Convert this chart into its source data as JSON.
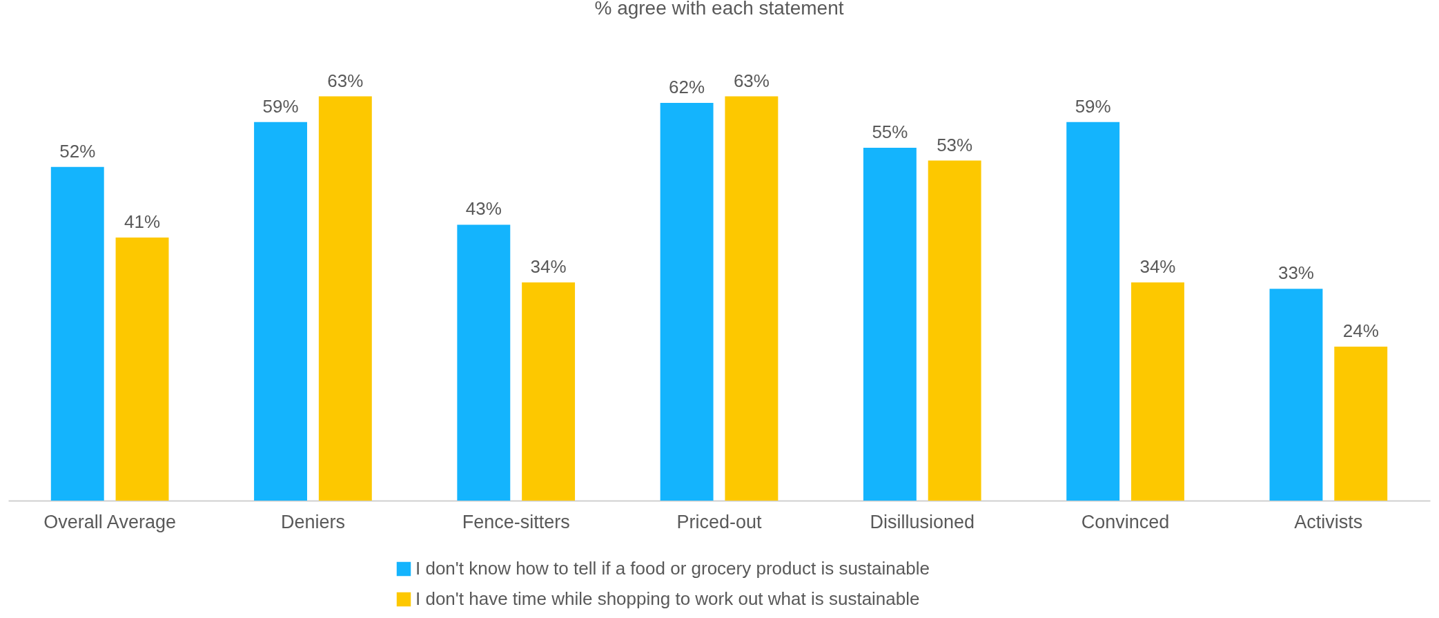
{
  "chart_data": {
    "type": "bar",
    "title": "% agree with each statement",
    "categories": [
      "Overall Average",
      "Deniers",
      "Fence-sitters",
      "Priced-out",
      "Disillusioned",
      "Convinced",
      "Activists"
    ],
    "series": [
      {
        "name": "I don't know how to tell if a food or grocery product is sustainable",
        "color": "#14b4fd",
        "values": [
          52,
          59,
          43,
          62,
          55,
          59,
          33
        ],
        "value_labels": [
          "52%",
          "59%",
          "43%",
          "62%",
          "55%",
          "59%",
          "33%"
        ]
      },
      {
        "name": "I don't have time while shopping to work out what is sustainable",
        "color": "#fdc800",
        "values": [
          41,
          63,
          34,
          63,
          53,
          34,
          24
        ],
        "value_labels": [
          "41%",
          "63%",
          "34%",
          "63%",
          "53%",
          "34%",
          "24%"
        ]
      }
    ],
    "legend": "bottom"
  }
}
